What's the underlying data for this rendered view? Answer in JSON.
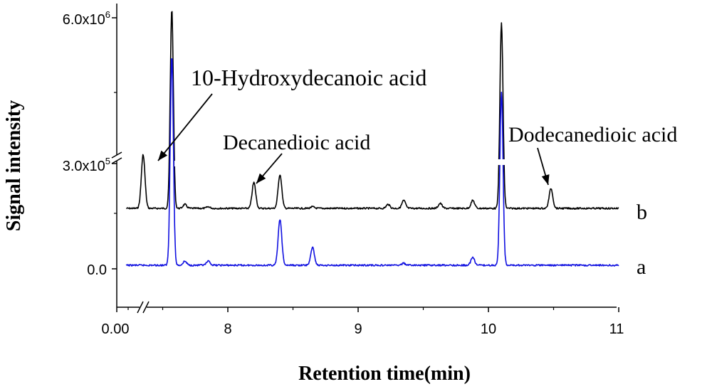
{
  "chart_data": {
    "type": "line",
    "xlabel": "Retention time(min)",
    "ylabel": "Signal intensity",
    "x_axis": {
      "break_after_first_tick": true,
      "first_tick_label": "0.00",
      "first_tick_value": 0,
      "range_after_break": [
        7.2,
        11.0
      ],
      "major_ticks": [
        8,
        9,
        10,
        11
      ],
      "tick_labels": [
        "8",
        "9",
        "10",
        "11"
      ],
      "minor_tick_step": 0.5
    },
    "y_axis": {
      "break": true,
      "ticks": [
        {
          "value": 0,
          "label": "0.0"
        },
        {
          "value": 300000,
          "label_base": "3.0x10",
          "label_exp": "5"
        },
        {
          "value": 6000000,
          "label_base": "6.0x10",
          "label_exp": "6"
        }
      ]
    },
    "series": [
      {
        "name": "b",
        "color": "#000000",
        "baseline_offset": 0.2,
        "peaks": [
          {
            "x": 7.35,
            "height": 0.27
          },
          {
            "x": 7.57,
            "height": 1.0
          },
          {
            "x": 7.67,
            "height": 0.02
          },
          {
            "x": 7.85,
            "height": 0.008
          },
          {
            "x": 8.2,
            "height": 0.13
          },
          {
            "x": 8.4,
            "height": 0.17
          },
          {
            "x": 8.65,
            "height": 0.008
          },
          {
            "x": 9.23,
            "height": 0.02
          },
          {
            "x": 9.35,
            "height": 0.04
          },
          {
            "x": 9.63,
            "height": 0.025
          },
          {
            "x": 9.88,
            "height": 0.04
          },
          {
            "x": 10.1,
            "height": 0.93
          },
          {
            "x": 10.48,
            "height": 0.1
          }
        ]
      },
      {
        "name": "a",
        "color": "#1010e0",
        "baseline_offset": 0.0,
        "peaks": [
          {
            "x": 7.57,
            "height": 1.05
          },
          {
            "x": 7.67,
            "height": 0.02
          },
          {
            "x": 7.85,
            "height": 0.02
          },
          {
            "x": 8.4,
            "height": 0.23
          },
          {
            "x": 8.65,
            "height": 0.09
          },
          {
            "x": 9.35,
            "height": 0.01
          },
          {
            "x": 9.88,
            "height": 0.04
          },
          {
            "x": 10.1,
            "height": 0.87
          }
        ]
      }
    ],
    "annotations": [
      {
        "text": "10-Hydroxydecanoic acid",
        "points_to": {
          "series": "b",
          "x": 7.35
        }
      },
      {
        "text": "Decanedioic acid",
        "points_to": {
          "series": "b",
          "x": 8.2
        }
      },
      {
        "text": "Dodecanedioic acid",
        "points_to": {
          "series": "b",
          "x": 10.48
        }
      }
    ],
    "legend_placement": "right-end-of-traces"
  }
}
